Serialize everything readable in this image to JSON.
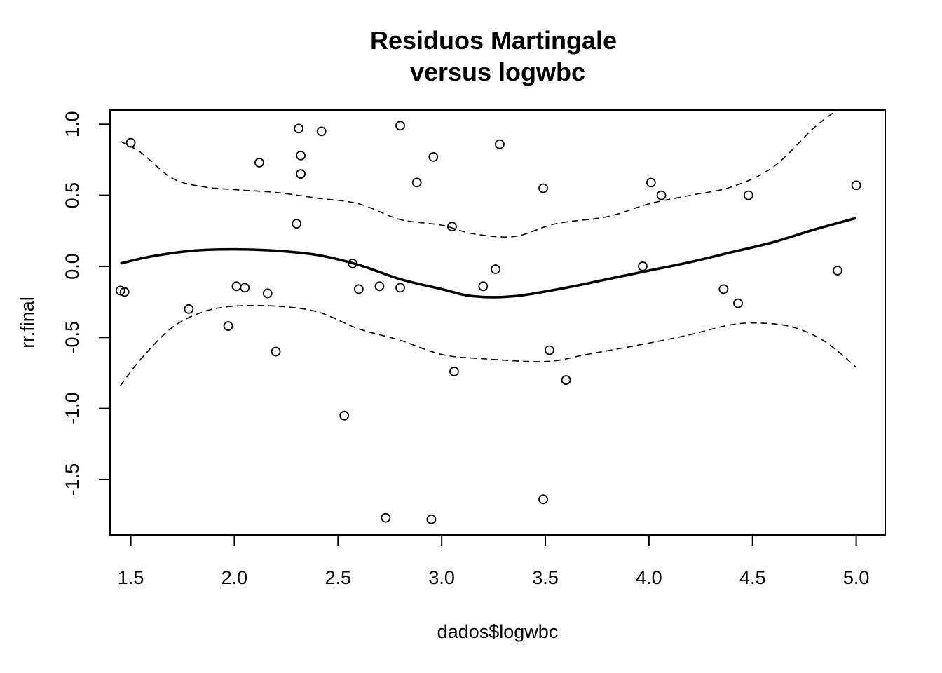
{
  "chart_data": {
    "type": "scatter",
    "title_line1": "Residuos Martingale",
    "title_line2": "versus logwbc",
    "xlabel": "dados$logwbc",
    "ylabel": "rr.final",
    "xlim": [
      1.4,
      5.14
    ],
    "ylim": [
      -1.89,
      1.1
    ],
    "x_ticks": [
      "1.5",
      "2.0",
      "2.5",
      "3.0",
      "3.5",
      "4.0",
      "4.5",
      "5.0"
    ],
    "y_ticks": [
      "-1.5",
      "-1.0",
      "-0.5",
      "0.0",
      "0.5",
      "1.0"
    ],
    "grid": false,
    "legend": "none",
    "points": [
      {
        "x": 1.45,
        "y": -0.17
      },
      {
        "x": 1.47,
        "y": -0.18
      },
      {
        "x": 1.5,
        "y": 0.87
      },
      {
        "x": 1.78,
        "y": -0.3
      },
      {
        "x": 1.97,
        "y": -0.42
      },
      {
        "x": 2.01,
        "y": -0.14
      },
      {
        "x": 2.05,
        "y": -0.15
      },
      {
        "x": 2.12,
        "y": 0.73
      },
      {
        "x": 2.16,
        "y": -0.19
      },
      {
        "x": 2.2,
        "y": -0.6
      },
      {
        "x": 2.3,
        "y": 0.3
      },
      {
        "x": 2.31,
        "y": 0.97
      },
      {
        "x": 2.32,
        "y": 0.78
      },
      {
        "x": 2.32,
        "y": 0.65
      },
      {
        "x": 2.42,
        "y": 0.95
      },
      {
        "x": 2.53,
        "y": -1.05
      },
      {
        "x": 2.57,
        "y": 0.02
      },
      {
        "x": 2.6,
        "y": -0.16
      },
      {
        "x": 2.7,
        "y": -0.14
      },
      {
        "x": 2.73,
        "y": -1.77
      },
      {
        "x": 2.8,
        "y": 0.99
      },
      {
        "x": 2.8,
        "y": -0.15
      },
      {
        "x": 2.88,
        "y": 0.59
      },
      {
        "x": 2.95,
        "y": -1.78
      },
      {
        "x": 2.96,
        "y": 0.77
      },
      {
        "x": 3.05,
        "y": 0.28
      },
      {
        "x": 3.06,
        "y": -0.74
      },
      {
        "x": 3.2,
        "y": -0.14
      },
      {
        "x": 3.26,
        "y": -0.02
      },
      {
        "x": 3.28,
        "y": 0.86
      },
      {
        "x": 3.49,
        "y": 0.55
      },
      {
        "x": 3.49,
        "y": -1.64
      },
      {
        "x": 3.52,
        "y": -0.59
      },
      {
        "x": 3.6,
        "y": -0.8
      },
      {
        "x": 3.97,
        "y": 0.0
      },
      {
        "x": 4.01,
        "y": 0.59
      },
      {
        "x": 4.06,
        "y": 0.5
      },
      {
        "x": 4.36,
        "y": -0.16
      },
      {
        "x": 4.43,
        "y": -0.26
      },
      {
        "x": 4.48,
        "y": 0.5
      },
      {
        "x": 4.91,
        "y": -0.03
      },
      {
        "x": 5.0,
        "y": 0.57
      }
    ],
    "series": [
      {
        "style": "solid",
        "x": [
          1.45,
          1.6,
          1.8,
          2.0,
          2.2,
          2.4,
          2.6,
          2.8,
          3.0,
          3.15,
          3.35,
          3.6,
          3.8,
          4.0,
          4.2,
          4.4,
          4.6,
          4.8,
          5.0
        ],
        "y": [
          0.02,
          0.07,
          0.11,
          0.12,
          0.11,
          0.08,
          0.01,
          -0.09,
          -0.16,
          -0.21,
          -0.21,
          -0.15,
          -0.09,
          -0.03,
          0.03,
          0.1,
          0.17,
          0.26,
          0.34
        ]
      },
      {
        "style": "dashed",
        "x": [
          1.45,
          1.55,
          1.7,
          1.85,
          2.0,
          2.2,
          2.4,
          2.6,
          2.8,
          3.0,
          3.15,
          3.35,
          3.55,
          3.8,
          4.0,
          4.2,
          4.4,
          4.6,
          4.8,
          4.95,
          5.0
        ],
        "y": [
          0.88,
          0.8,
          0.62,
          0.56,
          0.54,
          0.52,
          0.48,
          0.44,
          0.33,
          0.29,
          0.23,
          0.21,
          0.3,
          0.35,
          0.44,
          0.5,
          0.56,
          0.7,
          0.98,
          1.15,
          1.25
        ]
      },
      {
        "style": "dashed",
        "x": [
          1.45,
          1.55,
          1.7,
          1.85,
          2.0,
          2.2,
          2.4,
          2.6,
          2.8,
          3.0,
          3.2,
          3.5,
          3.7,
          4.0,
          4.2,
          4.4,
          4.55,
          4.7,
          4.85,
          5.0
        ],
        "y": [
          -0.84,
          -0.65,
          -0.43,
          -0.32,
          -0.28,
          -0.28,
          -0.32,
          -0.44,
          -0.52,
          -0.62,
          -0.65,
          -0.67,
          -0.62,
          -0.54,
          -0.48,
          -0.41,
          -0.4,
          -0.43,
          -0.53,
          -0.71
        ]
      }
    ]
  }
}
